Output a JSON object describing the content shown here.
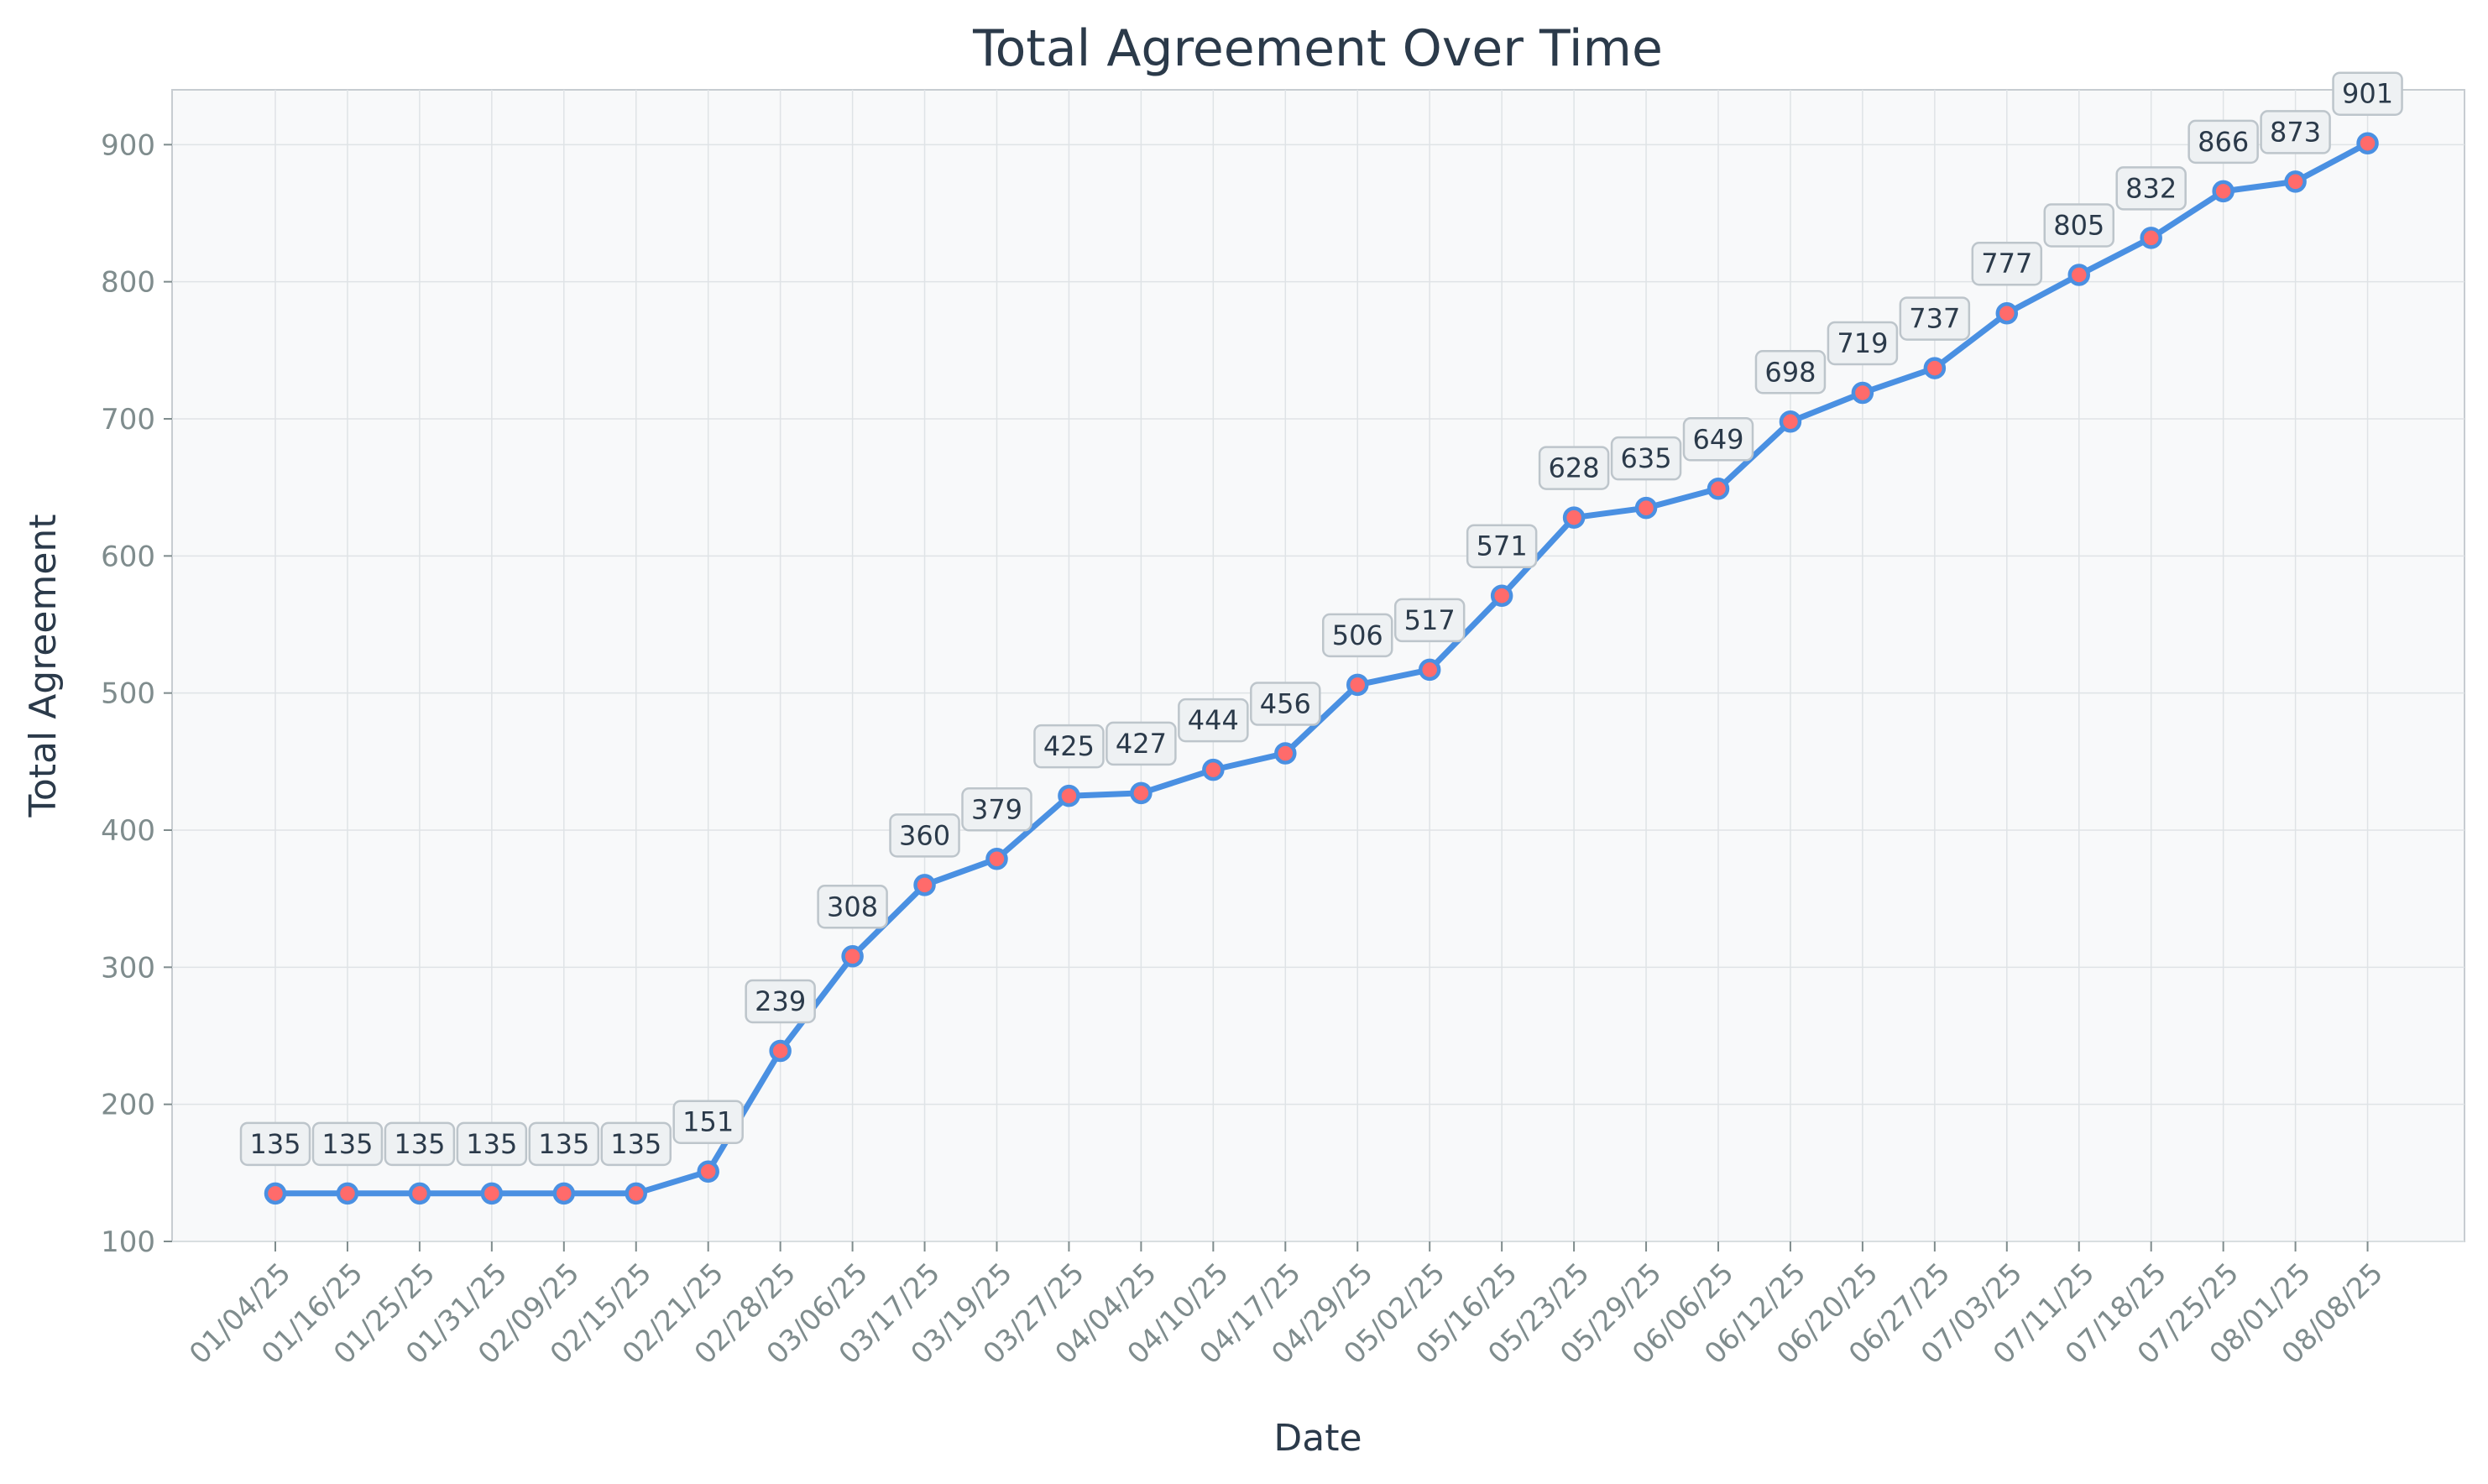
{
  "colors": {
    "line": "#4a90e2",
    "marker_fill": "#ff6b6b",
    "plot_bg": "#f8f9fa",
    "grid": "#dfe3e6",
    "label_box_fill": "#eef1f3",
    "label_box_stroke": "#bdc5cb"
  },
  "chart_data": {
    "type": "line",
    "title": "Total Agreement Over Time",
    "xlabel": "Date",
    "ylabel": "Total Agreement",
    "ylim": [
      100,
      940
    ],
    "yticks": [
      100,
      200,
      300,
      400,
      500,
      600,
      700,
      800,
      900
    ],
    "grid": true,
    "legend": "none",
    "categories": [
      "01/04/25",
      "01/16/25",
      "01/25/25",
      "01/31/25",
      "02/09/25",
      "02/15/25",
      "02/21/25",
      "02/28/25",
      "03/06/25",
      "03/17/25",
      "03/19/25",
      "03/27/25",
      "04/04/25",
      "04/10/25",
      "04/17/25",
      "04/29/25",
      "05/02/25",
      "05/16/25",
      "05/23/25",
      "05/29/25",
      "06/06/25",
      "06/12/25",
      "06/20/25",
      "06/27/25",
      "07/03/25",
      "07/11/25",
      "07/18/25",
      "07/25/25",
      "08/01/25",
      "08/08/25"
    ],
    "values": [
      135,
      135,
      135,
      135,
      135,
      135,
      151,
      239,
      308,
      360,
      379,
      425,
      427,
      444,
      456,
      506,
      517,
      571,
      628,
      635,
      649,
      698,
      719,
      737,
      777,
      805,
      832,
      866,
      873,
      901
    ]
  }
}
